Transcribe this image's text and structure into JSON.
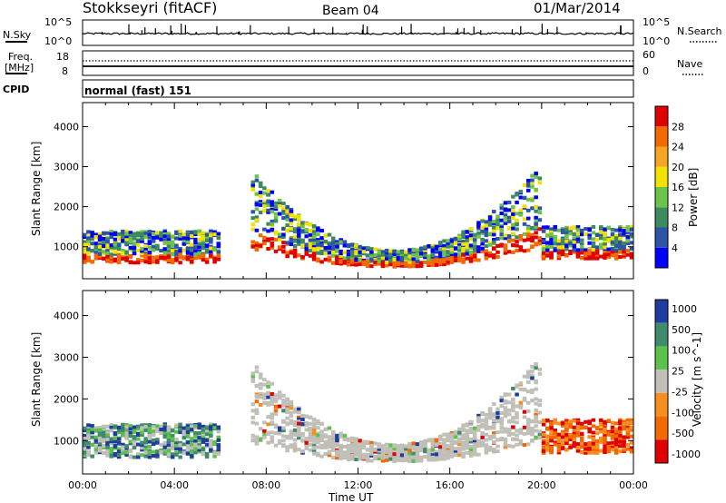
{
  "header": {
    "title": "Stokkseyri (fitACF)",
    "beam": "Beam 04",
    "date": "01/Mar/2014"
  },
  "noise_panel": {
    "left_label": "N.Sky",
    "right_label": "N.Search",
    "tick_top": "10^5",
    "tick_bottom": "10^0"
  },
  "freq_panel": {
    "left_label_1": "Freq.",
    "left_label_2": "[MHz]",
    "left_tick_top": "18",
    "left_tick_bottom": "8",
    "right_label": "Nave",
    "right_tick_top": "60",
    "right_tick_bottom": "0"
  },
  "cpid_panel": {
    "label": "CPID",
    "text": "normal (fast) 151"
  },
  "colors": {
    "power": [
      "#0000ff",
      "#2e54a6",
      "#3c8a5e",
      "#6cc24a",
      "#f2e200",
      "#f5a623",
      "#f26a00",
      "#e00000"
    ],
    "velocity": [
      "#1f3c9e",
      "#3f8b6c",
      "#5ec24a",
      "#c0c0b8",
      "#f59020",
      "#f26a00",
      "#e00000"
    ]
  },
  "chart_data": [
    {
      "type": "heatmap",
      "name": "power",
      "ylabel": "Slant Range [km]",
      "xlabel": "Time UT",
      "x_ticks": [
        "00:00",
        "04:00",
        "08:00",
        "12:00",
        "16:00",
        "20:00",
        "00:00"
      ],
      "y_ticks": [
        1000,
        2000,
        3000,
        4000
      ],
      "ylim": [
        200,
        4600
      ],
      "colorbar_label": "Power [dB]",
      "colorbar_ticks": [
        "4",
        "8",
        "12",
        "16",
        "20",
        "24",
        "28"
      ]
    },
    {
      "type": "heatmap",
      "name": "velocity",
      "ylabel": "Slant Range [km]",
      "xlabel": "Time UT",
      "x_ticks": [
        "00:00",
        "04:00",
        "08:00",
        "12:00",
        "16:00",
        "20:00",
        "00:00"
      ],
      "y_ticks": [
        1000,
        2000,
        3000,
        4000
      ],
      "ylim": [
        200,
        4600
      ],
      "colorbar_label": "Velocity [m s^-1]",
      "colorbar_ticks": [
        "1000",
        "500",
        "100",
        "25",
        "-25",
        "-100",
        "-500",
        "-1000"
      ]
    }
  ]
}
